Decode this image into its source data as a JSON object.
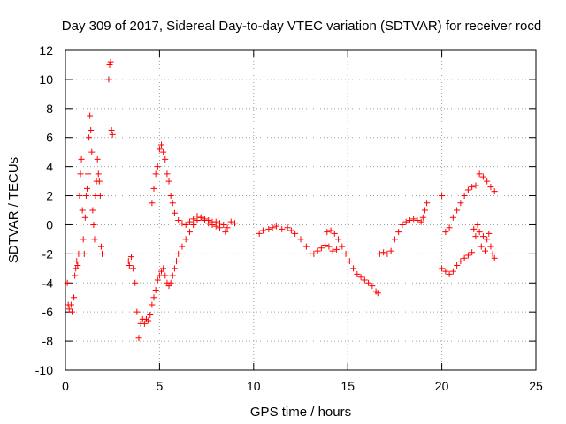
{
  "chart_data": {
    "type": "scatter",
    "title": "Day 309 of 2017, Sidereal Day-to-day VTEC variation (SDTVAR) for receiver rocd",
    "xlabel": "GPS time / hours",
    "ylabel": "SDTVAR / TECUs",
    "xlim": [
      0,
      25
    ],
    "ylim": [
      -10,
      12
    ],
    "x_ticks": [
      0,
      5,
      10,
      15,
      20,
      25
    ],
    "y_ticks": [
      -10,
      -8,
      -6,
      -4,
      -2,
      0,
      2,
      4,
      6,
      8,
      10,
      12
    ],
    "x_tick_labels": [
      "0",
      "5",
      "10",
      "15",
      "20",
      "25"
    ],
    "y_tick_labels": [
      "-10",
      "-8",
      "-6",
      "-4",
      "-2",
      "0",
      "2",
      "4",
      "6",
      "8",
      "10",
      "12"
    ],
    "grid": true,
    "marker": "plus",
    "color": "#ff0000",
    "series": [
      {
        "name": "SDTVAR",
        "x": [
          0.1,
          0.15,
          0.2,
          0.3,
          0.35,
          0.45,
          0.5,
          0.55,
          0.6,
          0.65,
          0.7,
          0.75,
          0.8,
          0.85,
          0.9,
          0.95,
          1.0,
          1.05,
          1.1,
          1.15,
          1.2,
          1.25,
          1.3,
          1.35,
          1.4,
          1.45,
          1.5,
          1.55,
          1.6,
          1.65,
          1.7,
          1.75,
          1.8,
          1.85,
          1.9,
          1.95,
          2.3,
          2.35,
          2.4,
          2.45,
          2.5,
          3.35,
          3.4,
          3.5,
          3.6,
          3.7,
          3.8,
          3.9,
          4.0,
          4.1,
          4.2,
          4.3,
          4.4,
          4.5,
          4.6,
          4.7,
          4.8,
          4.9,
          5.0,
          5.1,
          5.2,
          5.3,
          5.4,
          5.5,
          5.6,
          5.7,
          5.8,
          5.9,
          6.0,
          6.2,
          6.4,
          6.6,
          6.8,
          7.0,
          7.2,
          7.4,
          7.6,
          7.8,
          8.0,
          8.2,
          8.4,
          8.6,
          8.8,
          9.0,
          4.6,
          4.7,
          4.8,
          4.9,
          5.0,
          5.1,
          5.2,
          5.3,
          5.4,
          5.5,
          5.6,
          5.7,
          5.8,
          6.0,
          6.2,
          6.4,
          6.6,
          6.8,
          7.0,
          7.2,
          7.4,
          7.6,
          7.8,
          8.0,
          8.2,
          8.5,
          10.3,
          10.5,
          10.8,
          11.0,
          11.2,
          11.5,
          11.8,
          12.0,
          12.2,
          12.5,
          12.8,
          13.0,
          13.2,
          13.4,
          13.6,
          13.8,
          14.0,
          14.2,
          14.4,
          13.9,
          14.1,
          14.3,
          14.5,
          14.7,
          14.9,
          15.1,
          15.3,
          15.5,
          15.7,
          15.9,
          16.1,
          16.3,
          16.5,
          16.6,
          16.7,
          16.9,
          17.1,
          17.3,
          17.5,
          17.7,
          17.9,
          18.1,
          18.3,
          18.5,
          18.7,
          18.9,
          19.0,
          19.1,
          19.2,
          20.0,
          20.2,
          20.4,
          20.6,
          20.8,
          21.0,
          21.2,
          21.4,
          21.6,
          21.8,
          22.0,
          22.2,
          22.4,
          22.6,
          22.8,
          20.0,
          20.2,
          20.4,
          20.6,
          20.8,
          21.0,
          21.2,
          21.4,
          21.6,
          21.7,
          21.8,
          21.9,
          22.0,
          22.1,
          22.2,
          22.3,
          22.4,
          22.5,
          22.6,
          22.7,
          22.8
        ],
        "y": [
          -4,
          -5.5,
          -5.8,
          -5.5,
          -6,
          -5,
          -3.5,
          -3,
          -2.5,
          -2.8,
          -2,
          2,
          3.5,
          4.5,
          1,
          -1,
          -2,
          0.5,
          2,
          2.5,
          3.5,
          6,
          7.5,
          6.5,
          5,
          1,
          0,
          -1,
          2,
          3,
          4.5,
          3.5,
          3,
          2,
          -1.5,
          -2,
          10,
          11,
          11.2,
          6.5,
          6.2,
          -2.5,
          -2.8,
          -2.2,
          -3,
          -4,
          -6,
          -7.8,
          -6.8,
          -6.5,
          -6.8,
          -6.5,
          -6.6,
          -6.2,
          -5.5,
          -5,
          -4.5,
          -3.8,
          -3.5,
          -3.2,
          -3.0,
          -3.5,
          -4.0,
          -4.2,
          -4.0,
          -3.5,
          -3.0,
          -2.5,
          -2.0,
          -1.5,
          -1.0,
          -0.5,
          0,
          0.3,
          0.5,
          0.4,
          0.3,
          0.2,
          0.2,
          0.1,
          0.0,
          -0.2,
          0.2,
          0.1,
          1.5,
          2.5,
          3.5,
          4.0,
          5.2,
          5.5,
          5.0,
          4.5,
          3.5,
          3.0,
          2.0,
          1.5,
          0.8,
          0.3,
          0.1,
          0.0,
          0.2,
          0.4,
          0.6,
          0.5,
          0.3,
          0.1,
          0.0,
          -0.1,
          -0.2,
          -0.5,
          -0.6,
          -0.4,
          -0.3,
          -0.2,
          -0.1,
          -0.3,
          -0.2,
          -0.4,
          -0.6,
          -1.0,
          -1.5,
          -2.0,
          -2.0,
          -1.8,
          -1.6,
          -1.4,
          -1.5,
          -1.8,
          -1.7,
          -0.5,
          -0.4,
          -0.6,
          -1.0,
          -1.5,
          -2.0,
          -2.5,
          -3.0,
          -3.4,
          -3.6,
          -3.8,
          -4.0,
          -4.2,
          -4.6,
          -4.7,
          -2.0,
          -1.9,
          -2.0,
          -1.8,
          -1.0,
          -0.5,
          0.0,
          0.2,
          0.3,
          0.4,
          0.3,
          0.2,
          0.5,
          1.0,
          1.5,
          2.0,
          -0.5,
          -0.2,
          0.5,
          1.0,
          1.5,
          2.0,
          2.4,
          2.6,
          2.7,
          3.5,
          3.3,
          3.0,
          2.6,
          2.3,
          -3.0,
          -3.2,
          -3.4,
          -3.2,
          -2.8,
          -2.5,
          -2.3,
          -2.1,
          -1.9,
          -0.3,
          -0.8,
          0,
          -0.5,
          -1.5,
          -0.8,
          -1.8,
          -1.0,
          -0.6,
          -1.5,
          -2.0,
          -2.3
        ]
      }
    ]
  }
}
